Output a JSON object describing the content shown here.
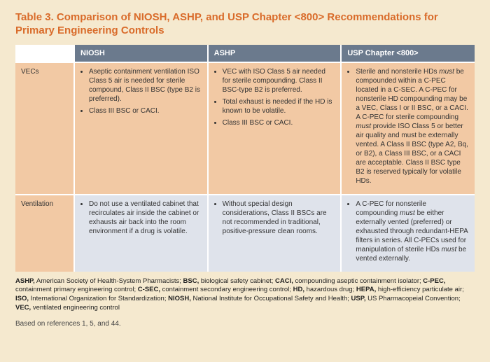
{
  "title": "Table 3. Comparison of NIOSH, ASHP, and USP Chapter &lt;800&gt; Recommendations for Primary Engineering Controls",
  "columns": [
    "NIOSH",
    "ASHP",
    "USP Chapter &lt;800&gt;"
  ],
  "rows": [
    {
      "label": "VECs",
      "cells": [
        {
          "bullets": [
            "Aseptic containment ventilation ISO Class 5 air is needed for sterile compound, Class II BSC (type B2 is preferred).",
            "Class III BSC or CACI."
          ]
        },
        {
          "bullets": [
            "VEC with ISO Class 5 air needed for sterile compounding. Class II BSC-type B2 is preferred.",
            "Total exhaust is needed if the HD is known to be volatile.",
            "Class III BSC or CACI."
          ]
        },
        {
          "bullets": [
            "Sterile and nonsterile HDs <span class=\"em\">must</span> be compounded within a C-PEC located in a C-SEC. A C-PEC for nonsterile HD compounding may be a VEC, Class I or II BSC, or a CACI. A C-PEC for sterile compounding <span class=\"em\">must</span> provide ISO Class 5 or better air quality and must be externally vented. A Class II BSC (type A2, Bq, or B2), a Class III BSC, or a CACI are acceptable. Class II BSC type B2 is reserved typically for volatile HDs."
          ]
        }
      ]
    },
    {
      "label": "Ventilation",
      "cells": [
        {
          "bullets": [
            "Do not use a ventilated cabinet that recirculates air inside the cabinet or exhausts air back into the room environment if a drug is volatile."
          ]
        },
        {
          "bullets": [
            "Without special design considerations, Class II BSCs are not recommended in traditional, positive-pressure clean rooms."
          ]
        },
        {
          "bullets": [
            "A C-PEC for nonsterile compounding <span class=\"em\">must</span> be either externally vented (preferred) or exhausted through redundant-HEPA filters in series. All C-PECs used for manipulation of sterile HDs <span class=\"em\">must</span> be vented externally."
          ]
        }
      ]
    }
  ],
  "abbreviations": [
    {
      "k": "ASHP,",
      "v": " American Society of Health-System Pharmacists; "
    },
    {
      "k": "BSC,",
      "v": " biological safety cabinet; "
    },
    {
      "k": "CACI,",
      "v": " compounding aseptic containment isolator; "
    },
    {
      "k": "C-PEC,",
      "v": " containment primary engineering control; "
    },
    {
      "k": "C-SEC,",
      "v": " containment secondary engineering control; "
    },
    {
      "k": "HD,",
      "v": " hazardous drug; "
    },
    {
      "k": "HEPA,",
      "v": " high-efficiency particulate air; "
    },
    {
      "k": "ISO,",
      "v": " International Organization for Standardization; "
    },
    {
      "k": "NIOSH,",
      "v": " National Institute for Occupational Safety and Health; "
    },
    {
      "k": "USP,",
      "v": " US Pharmacopeial Convention; "
    },
    {
      "k": "VEC,",
      "v": " ventilated engineering control"
    }
  ],
  "footnote": "Based on references 1, 5, and 44.",
  "colors": {
    "page_bg": "#f5e9cf",
    "title": "#d96b2a",
    "header_bg": "#6b7a8d",
    "header_text": "#ffffff",
    "row0_bg": "#f2c9a4",
    "row1_bg": "#dfe3eb",
    "border": "#ffffff"
  }
}
